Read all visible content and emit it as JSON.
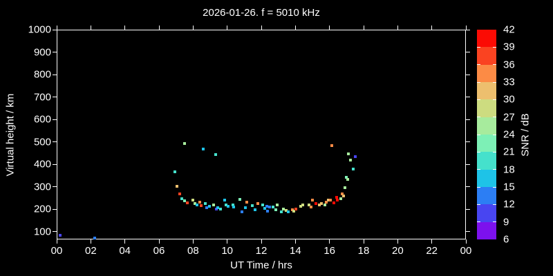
{
  "title": "2026-01-26. f = 5010 kHz",
  "chart_data": {
    "type": "scatter",
    "xlabel": "UT Time / hrs",
    "ylabel": "Virtual height / km",
    "x_range": [
      0,
      24
    ],
    "x_tick_step_hours": 2,
    "x_tick_labels": [
      "00",
      "02",
      "04",
      "06",
      "08",
      "10",
      "12",
      "14",
      "16",
      "18",
      "20",
      "22",
      "00"
    ],
    "y_range": [
      66,
      1000
    ],
    "y_tick_values": [
      100,
      200,
      300,
      400,
      500,
      600,
      700,
      800,
      900,
      1000
    ],
    "grid": false,
    "colorbar": {
      "label": "SNR / dB",
      "tick_values": [
        6,
        9,
        12,
        15,
        18,
        21,
        24,
        27,
        30,
        33,
        36,
        39,
        42
      ],
      "colors_bottom_to_top": [
        "#7c11ed",
        "#4845f1",
        "#2c7ef4",
        "#1ec3e7",
        "#45e1cc",
        "#7df0b6",
        "#a7eb9d",
        "#cddc80",
        "#edbf6e",
        "#fc8b45",
        "#fa4321",
        "#fb0b04"
      ],
      "min": 6,
      "max": 42,
      "step": 3
    },
    "points_format": [
      "ut_hours",
      "virtual_height_km",
      "snr_db"
    ],
    "points": [
      [
        0.2,
        84,
        10
      ],
      [
        2.22,
        73,
        13
      ],
      [
        6.95,
        367,
        19
      ],
      [
        7.05,
        303,
        31
      ],
      [
        7.22,
        269,
        37
      ],
      [
        7.33,
        246,
        19
      ],
      [
        7.49,
        238,
        22
      ],
      [
        7.51,
        492,
        25
      ],
      [
        7.66,
        228,
        37
      ],
      [
        7.99,
        241,
        28
      ],
      [
        8.1,
        226,
        25
      ],
      [
        8.23,
        221,
        16
      ],
      [
        8.4,
        233,
        34
      ],
      [
        8.47,
        216,
        37
      ],
      [
        8.61,
        469,
        16
      ],
      [
        8.7,
        226,
        19
      ],
      [
        8.81,
        207,
        13
      ],
      [
        8.97,
        213,
        16
      ],
      [
        9.2,
        219,
        25
      ],
      [
        9.31,
        443,
        19
      ],
      [
        9.35,
        202,
        10
      ],
      [
        9.45,
        208,
        16
      ],
      [
        9.61,
        200,
        19
      ],
      [
        9.85,
        241,
        16
      ],
      [
        9.95,
        221,
        19
      ],
      [
        10.05,
        213,
        16
      ],
      [
        10.33,
        219,
        19
      ],
      [
        10.39,
        210,
        16
      ],
      [
        10.76,
        243,
        22
      ],
      [
        10.86,
        190,
        13
      ],
      [
        11.07,
        208,
        16
      ],
      [
        11.14,
        231,
        34
      ],
      [
        11.47,
        216,
        19
      ],
      [
        11.65,
        198,
        16
      ],
      [
        11.81,
        226,
        34
      ],
      [
        12.08,
        221,
        19
      ],
      [
        12.19,
        205,
        16
      ],
      [
        12.31,
        214,
        13
      ],
      [
        12.35,
        192,
        13
      ],
      [
        12.49,
        210,
        13
      ],
      [
        12.69,
        210,
        19
      ],
      [
        12.85,
        198,
        22
      ],
      [
        12.93,
        219,
        25
      ],
      [
        13.16,
        190,
        19
      ],
      [
        13.3,
        202,
        25
      ],
      [
        13.47,
        195,
        28
      ],
      [
        13.57,
        188,
        16
      ],
      [
        13.84,
        198,
        34
      ],
      [
        13.91,
        192,
        28
      ],
      [
        14.01,
        202,
        37
      ],
      [
        14.31,
        213,
        28
      ],
      [
        14.45,
        219,
        28
      ],
      [
        14.79,
        220,
        28
      ],
      [
        14.92,
        210,
        34
      ],
      [
        14.99,
        241,
        34
      ],
      [
        15.19,
        226,
        40
      ],
      [
        15.42,
        219,
        31
      ],
      [
        15.53,
        226,
        31
      ],
      [
        15.73,
        219,
        25
      ],
      [
        15.82,
        233,
        34
      ],
      [
        15.93,
        241,
        31
      ],
      [
        16.04,
        241,
        34
      ],
      [
        16.14,
        484,
        34
      ],
      [
        16.27,
        228,
        40
      ],
      [
        16.41,
        253,
        40
      ],
      [
        16.47,
        241,
        40
      ],
      [
        16.68,
        246,
        25
      ],
      [
        16.74,
        269,
        34
      ],
      [
        16.81,
        260,
        31
      ],
      [
        16.92,
        297,
        25
      ],
      [
        16.99,
        342,
        22
      ],
      [
        17.08,
        333,
        25
      ],
      [
        17.12,
        447,
        25
      ],
      [
        17.22,
        420,
        25
      ],
      [
        17.38,
        379,
        19
      ],
      [
        17.53,
        436,
        10
      ]
    ]
  }
}
